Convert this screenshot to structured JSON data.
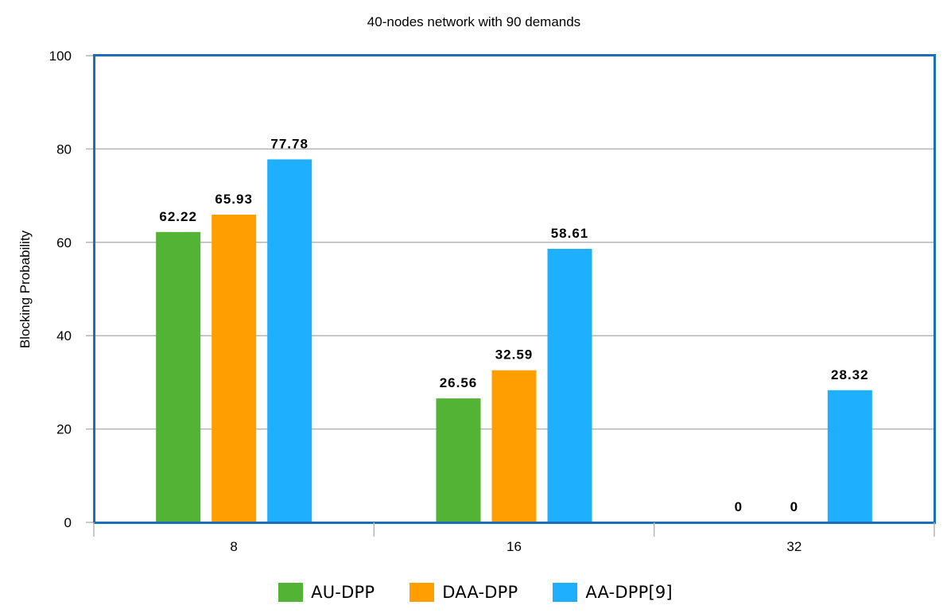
{
  "chart_data": {
    "type": "bar",
    "title": "40-nodes network with 90 demands",
    "xlabel": "",
    "ylabel": "Blocking Probability",
    "categories": [
      "8",
      "16",
      "32"
    ],
    "ylim": [
      0,
      100
    ],
    "yticks": [
      0,
      20,
      40,
      60,
      80,
      100
    ],
    "grid": true,
    "legend_position": "bottom",
    "series": [
      {
        "name": "AU-DPP",
        "color": "#52b335",
        "values": [
          62.22,
          26.56,
          0
        ],
        "labels": [
          "62.22",
          "26.56",
          "0"
        ]
      },
      {
        "name": "DAA-DPP",
        "color": "#ff9e00",
        "values": [
          65.93,
          32.59,
          0
        ],
        "labels": [
          "65.93",
          "32.59",
          "0"
        ]
      },
      {
        "name": "AA-DPP[9]",
        "color": "#1eb0ff",
        "values": [
          77.78,
          58.61,
          28.32
        ],
        "labels": [
          "77.78",
          "58.61",
          "28.32"
        ]
      }
    ],
    "colors": {
      "frame": "#1a6fb8",
      "grid": "#b4b4b4"
    }
  }
}
